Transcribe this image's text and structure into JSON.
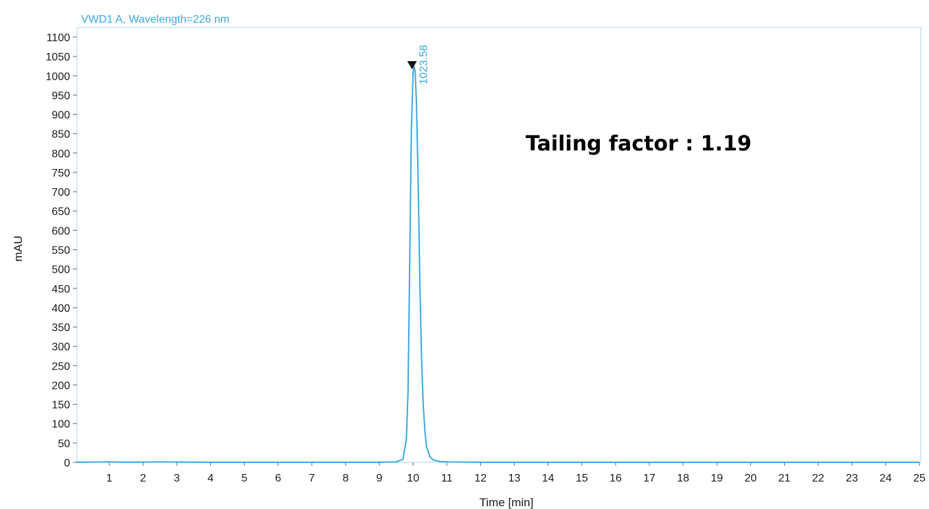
{
  "colors": {
    "trace": "#3aa8e0",
    "frame": "#a9d4ee",
    "axis": "#666666",
    "text": "#1a1a1a",
    "marker": "#111111"
  },
  "chart_data": {
    "type": "line",
    "title": "VWD1 A, Wavelength=226 nm",
    "xlabel": "Time [min]",
    "ylabel": "mAU",
    "xlim": [
      0,
      25
    ],
    "ylim": [
      -25,
      1110
    ],
    "xticks": [
      1,
      2,
      3,
      4,
      5,
      6,
      7,
      8,
      9,
      10,
      11,
      12,
      13,
      14,
      15,
      16,
      17,
      18,
      19,
      20,
      21,
      22,
      23,
      24,
      25
    ],
    "yticks": [
      0,
      50,
      100,
      150,
      200,
      250,
      300,
      350,
      400,
      450,
      500,
      550,
      600,
      650,
      700,
      750,
      800,
      850,
      900,
      950,
      1000,
      1050,
      1100
    ],
    "grid": false,
    "series": [
      {
        "x": [
          0.0,
          1.0,
          1.5,
          2.5,
          4.0,
          6.0,
          8.0,
          9.0,
          9.5,
          9.7,
          9.8,
          9.85,
          9.9,
          9.95,
          10.0,
          10.03,
          10.06,
          10.1,
          10.15,
          10.2,
          10.25,
          10.3,
          10.35,
          10.4,
          10.5,
          10.6,
          10.8,
          11.0,
          12.0,
          15.0,
          20.0,
          25.0
        ],
        "y": [
          0,
          1,
          0,
          1,
          0,
          0,
          0,
          0,
          1,
          8,
          60,
          180,
          520,
          860,
          1010,
          1023.58,
          1012,
          930,
          720,
          470,
          270,
          150,
          80,
          40,
          14,
          6,
          2,
          1,
          0,
          0,
          0,
          0
        ]
      }
    ],
    "annotations": [
      {
        "kind": "peak-label",
        "text": "1023.58",
        "x": 10.03,
        "y": 1023.58
      },
      {
        "kind": "note",
        "text": "Tailing factor : 1.19"
      }
    ]
  }
}
